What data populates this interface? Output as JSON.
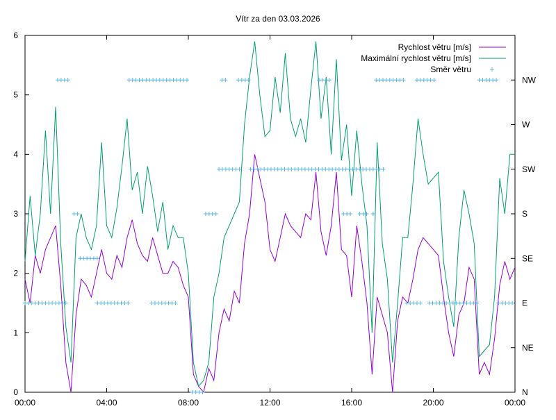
{
  "chart_data": {
    "type": "line",
    "title": "Vítr za den 03.03.2026",
    "xlabel": "",
    "ylabel": "",
    "xlim_hours": [
      0,
      24
    ],
    "ylim": [
      0,
      6
    ],
    "x_ticks": [
      "00:00",
      "04:00",
      "08:00",
      "12:00",
      "16:00",
      "20:00",
      "00:00"
    ],
    "y_ticks": [
      "0",
      "1",
      "2",
      "3",
      "4",
      "5",
      "6"
    ],
    "y2_ticks": [
      "N",
      "NE",
      "E",
      "SE",
      "S",
      "SW",
      "W",
      "NW"
    ],
    "grid": false,
    "legend_position": "top-right",
    "colors": {
      "speed": "#9400d3",
      "gust": "#009e73",
      "direction": "#56b4e9"
    },
    "sample_interval_hours": 0.25,
    "series": [
      {
        "name": "Rychlost větru [m/s]",
        "style": "line",
        "values": [
          1.9,
          1.5,
          2.3,
          2.0,
          2.4,
          2.6,
          2.8,
          1.8,
          0.5,
          0.0,
          1.3,
          1.9,
          1.8,
          1.6,
          2.0,
          2.4,
          2.0,
          1.9,
          2.3,
          2.1,
          2.6,
          2.9,
          2.5,
          2.3,
          2.2,
          2.6,
          2.3,
          2.0,
          2.0,
          2.2,
          2.1,
          1.8,
          1.6,
          0.3,
          0.1,
          0.0,
          0.4,
          0.2,
          1.0,
          1.4,
          1.2,
          1.7,
          1.5,
          2.5,
          3.0,
          4.0,
          3.6,
          3.2,
          2.4,
          2.2,
          2.6,
          3.0,
          2.8,
          2.7,
          2.6,
          3.0,
          2.9,
          3.7,
          2.7,
          2.3,
          2.8,
          3.7,
          2.4,
          2.3,
          1.6,
          2.8,
          2.2,
          1.5,
          0.3,
          1.6,
          1.3,
          1.0,
          0.0,
          1.2,
          1.6,
          1.5,
          1.9,
          2.4,
          2.6,
          2.5,
          2.4,
          2.3,
          1.6,
          1.0,
          0.6,
          1.3,
          1.5,
          2.1,
          1.9,
          0.3,
          0.5,
          0.3,
          0.9,
          1.8,
          2.2,
          1.9,
          2.1
        ]
      },
      {
        "name": "Maximální rychlost větru [m/s]",
        "style": "line",
        "values": [
          2.2,
          3.3,
          2.3,
          3.0,
          4.4,
          3.0,
          4.8,
          2.5,
          1.1,
          0.5,
          2.6,
          3.0,
          2.6,
          2.4,
          2.8,
          4.2,
          2.8,
          2.6,
          3.1,
          3.8,
          4.6,
          3.4,
          3.7,
          3.0,
          3.8,
          3.3,
          2.7,
          3.2,
          2.4,
          2.8,
          2.6,
          2.6,
          2.0,
          0.5,
          0.1,
          0.2,
          0.5,
          1.6,
          2.0,
          2.6,
          2.8,
          3.0,
          3.2,
          4.5,
          5.3,
          5.9,
          5.0,
          4.3,
          4.4,
          5.3,
          4.7,
          5.7,
          4.6,
          4.3,
          4.6,
          4.2,
          5.1,
          5.9,
          4.6,
          5.3,
          4.0,
          5.6,
          3.9,
          4.5,
          3.3,
          4.4,
          3.5,
          2.8,
          1.0,
          4.2,
          2.5,
          1.9,
          0.5,
          1.5,
          2.6,
          2.6,
          3.5,
          4.6,
          4.0,
          3.5,
          3.6,
          3.7,
          2.2,
          1.6,
          1.1,
          2.6,
          3.4,
          3.0,
          2.5,
          0.6,
          0.7,
          0.8,
          1.6,
          3.6,
          3.0,
          4.0,
          4.0
        ]
      },
      {
        "name": "Směr větru",
        "style": "points",
        "direction_segments": [
          {
            "from": 0.0,
            "to": 2.05,
            "dir": "E"
          },
          {
            "from": 1.6,
            "to": 2.25,
            "dir": "NW"
          },
          {
            "from": 2.4,
            "to": 2.6,
            "dir": "S"
          },
          {
            "from": 2.7,
            "to": 3.55,
            "dir": "SE"
          },
          {
            "from": 3.55,
            "to": 5.1,
            "dir": "E"
          },
          {
            "from": 5.1,
            "to": 8.0,
            "dir": "NW"
          },
          {
            "from": 6.2,
            "to": 7.5,
            "dir": "E"
          },
          {
            "from": 8.2,
            "to": 8.85,
            "dir": "N"
          },
          {
            "from": 8.85,
            "to": 9.5,
            "dir": "S"
          },
          {
            "from": 9.5,
            "to": 10.5,
            "dir": "SW"
          },
          {
            "from": 9.65,
            "to": 9.95,
            "dir": "NW"
          },
          {
            "from": 10.45,
            "to": 11.05,
            "dir": "NW"
          },
          {
            "from": 11.05,
            "to": 17.65,
            "dir": "SW"
          },
          {
            "from": 14.4,
            "to": 14.9,
            "dir": "NW"
          },
          {
            "from": 15.6,
            "to": 16.05,
            "dir": "S"
          },
          {
            "from": 16.4,
            "to": 16.75,
            "dir": "S"
          },
          {
            "from": 17.05,
            "to": 17.2,
            "dir": "S"
          },
          {
            "from": 17.2,
            "to": 18.6,
            "dir": "NW"
          },
          {
            "from": 18.7,
            "to": 19.5,
            "dir": "E"
          },
          {
            "from": 19.2,
            "to": 20.1,
            "dir": "NW"
          },
          {
            "from": 19.8,
            "to": 22.25,
            "dir": "E"
          },
          {
            "from": 22.25,
            "to": 23.2,
            "dir": "NW"
          },
          {
            "from": 23.2,
            "to": 24.0,
            "dir": "E"
          }
        ]
      }
    ]
  }
}
